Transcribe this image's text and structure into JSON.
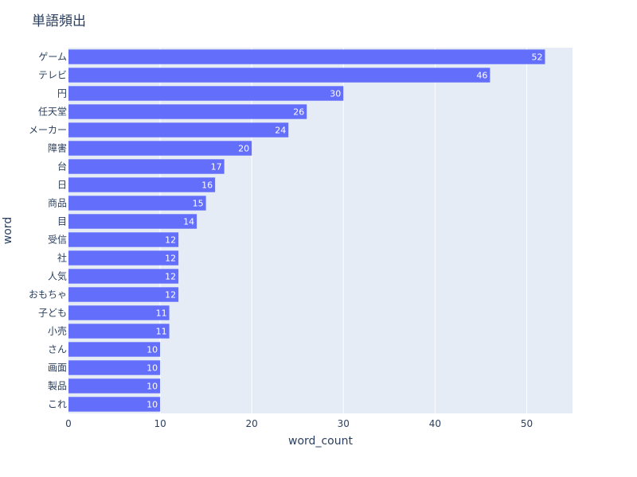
{
  "chart_data": {
    "type": "bar",
    "orientation": "horizontal",
    "title": "単語頻出",
    "xlabel": "word_count",
    "ylabel": "word",
    "xlim": [
      0,
      55
    ],
    "x_ticks": [
      0,
      10,
      20,
      30,
      40,
      50
    ],
    "grid": true,
    "categories": [
      "ゲーム",
      "テレビ",
      "円",
      "任天堂",
      "メーカー",
      "障害",
      "台",
      "日",
      "商品",
      "目",
      "受信",
      "社",
      "人気",
      "おもちゃ",
      "子ども",
      "小売",
      "さん",
      "画面",
      "製品",
      "これ"
    ],
    "values": [
      52,
      46,
      30,
      26,
      24,
      20,
      17,
      16,
      15,
      14,
      12,
      12,
      12,
      12,
      11,
      11,
      10,
      10,
      10,
      10
    ],
    "colors": {
      "bar": "#636efa",
      "plot_bg": "#e5ecf6",
      "grid": "#ffffff",
      "text": "#2a3f5f"
    }
  }
}
